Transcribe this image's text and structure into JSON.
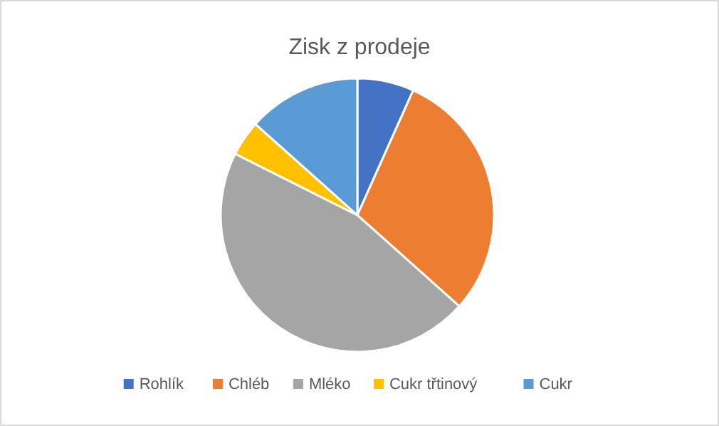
{
  "chart_data": {
    "type": "pie",
    "title": "Zisk z prodeje",
    "categories": [
      "Rohlík",
      "Chléb",
      "Mléko",
      "Cukr třtinový",
      "Cukr"
    ],
    "values": [
      6.7,
      29.9,
      45.8,
      4.2,
      13.4
    ],
    "colors": [
      "#4472c4",
      "#ed7d31",
      "#a5a5a5",
      "#ffc000",
      "#5b9bd5"
    ],
    "legend": "bottom"
  }
}
